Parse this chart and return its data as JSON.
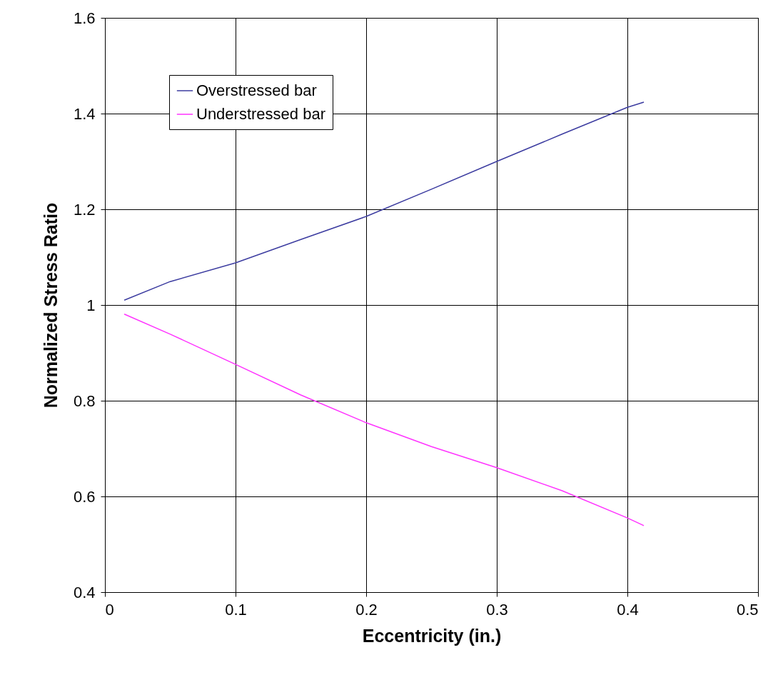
{
  "chart_data": {
    "type": "line",
    "xlabel": "Eccentricity (in.)",
    "ylabel": "Normalized Stress Ratio",
    "x": [
      0.0148,
      0.05,
      0.1,
      0.15,
      0.2,
      0.25,
      0.3,
      0.35,
      0.4,
      0.4126
    ],
    "series": [
      {
        "name": "Overstressed bar",
        "color": "#3c3ca0",
        "values": [
          1.01,
          1.049,
          1.088,
          1.137,
          1.185,
          1.242,
          1.3,
          1.357,
          1.413,
          1.424
        ]
      },
      {
        "name": "Understressed bar",
        "color": "#ff33ff",
        "values": [
          0.981,
          0.939,
          0.876,
          0.812,
          0.754,
          0.704,
          0.66,
          0.612,
          0.555,
          0.539
        ]
      }
    ],
    "xlim": [
      0,
      0.5
    ],
    "xticks": [
      0,
      0.1,
      0.2,
      0.3,
      0.4,
      0.5
    ],
    "ylim": [
      0.4,
      1.6
    ],
    "yticks": [
      0.4,
      0.6,
      0.8,
      1,
      1.2,
      1.4,
      1.6
    ],
    "grid": true,
    "legend": "top left",
    "marker": "none",
    "line_style": "solid"
  }
}
